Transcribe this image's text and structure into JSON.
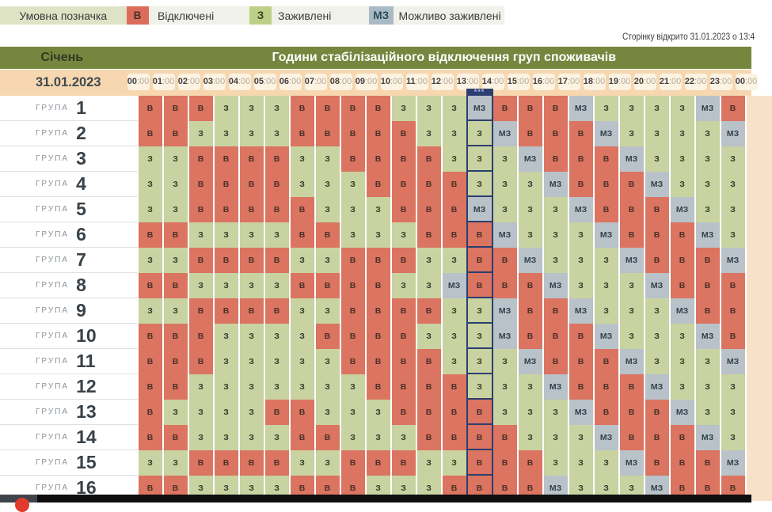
{
  "legend": {
    "title": "Умовна позначка",
    "items": [
      {
        "code": "В",
        "label": "Відключені",
        "type": "off",
        "color": "#dc6c5a"
      },
      {
        "code": "З",
        "label": "Заживлені",
        "type": "on",
        "color": "#bed087"
      },
      {
        "code": "МЗ",
        "label": "Можливо заживлені",
        "type": "maybe",
        "color": "#a9bac5"
      }
    ]
  },
  "page_opened_note": "Сторінку відкрито 31.01.2023 о 13:4",
  "table": {
    "month": "Січень",
    "title": "Години стабілізаційного відключення груп споживачів",
    "date": "31.01.2023",
    "hours": [
      "00:00",
      "01:00",
      "02:00",
      "03:00",
      "04:00",
      "05:00",
      "06:00",
      "07:00",
      "08:00",
      "09:00",
      "10:00",
      "11:00",
      "12:00",
      "13:00",
      "14:00",
      "15:00",
      "16:00",
      "17:00",
      "18:00",
      "19:00",
      "20:00",
      "21:00",
      "22:00",
      "23:00",
      "00:00"
    ],
    "current_hour": "13:00",
    "current_hour_index": 13,
    "marker_symbol": "***",
    "group_label": "ГРУПА",
    "groups": [
      {
        "number": "1",
        "cells": [
          "В",
          "В",
          "В",
          "З",
          "З",
          "З",
          "В",
          "В",
          "В",
          "В",
          "З",
          "З",
          "З",
          "МЗ",
          "В",
          "В",
          "В",
          "МЗ",
          "З",
          "З",
          "З",
          "З",
          "МЗ",
          "В"
        ]
      },
      {
        "number": "2",
        "cells": [
          "В",
          "В",
          "З",
          "З",
          "З",
          "З",
          "В",
          "В",
          "В",
          "В",
          "В",
          "З",
          "З",
          "З",
          "МЗ",
          "В",
          "В",
          "В",
          "МЗ",
          "З",
          "З",
          "З",
          "З",
          "МЗ"
        ]
      },
      {
        "number": "3",
        "cells": [
          "З",
          "З",
          "В",
          "В",
          "В",
          "В",
          "З",
          "З",
          "В",
          "В",
          "В",
          "В",
          "З",
          "З",
          "З",
          "МЗ",
          "В",
          "В",
          "В",
          "МЗ",
          "З",
          "З",
          "З",
          "З"
        ]
      },
      {
        "number": "4",
        "cells": [
          "З",
          "З",
          "В",
          "В",
          "В",
          "В",
          "З",
          "З",
          "З",
          "В",
          "В",
          "В",
          "В",
          "З",
          "З",
          "З",
          "МЗ",
          "В",
          "В",
          "В",
          "МЗ",
          "З",
          "З",
          "З"
        ]
      },
      {
        "number": "5",
        "cells": [
          "З",
          "З",
          "В",
          "В",
          "В",
          "В",
          "В",
          "З",
          "З",
          "З",
          "В",
          "В",
          "В",
          "МЗ",
          "З",
          "З",
          "З",
          "МЗ",
          "В",
          "В",
          "В",
          "МЗ",
          "З",
          "З"
        ]
      },
      {
        "number": "6",
        "cells": [
          "В",
          "В",
          "З",
          "З",
          "З",
          "З",
          "В",
          "В",
          "З",
          "З",
          "З",
          "В",
          "В",
          "В",
          "МЗ",
          "З",
          "З",
          "З",
          "МЗ",
          "В",
          "В",
          "В",
          "МЗ",
          "З"
        ]
      },
      {
        "number": "7",
        "cells": [
          "З",
          "З",
          "В",
          "В",
          "В",
          "В",
          "З",
          "З",
          "В",
          "В",
          "В",
          "З",
          "З",
          "В",
          "В",
          "МЗ",
          "З",
          "З",
          "З",
          "МЗ",
          "В",
          "В",
          "В",
          "МЗ"
        ]
      },
      {
        "number": "8",
        "cells": [
          "В",
          "В",
          "З",
          "З",
          "З",
          "З",
          "В",
          "В",
          "В",
          "В",
          "З",
          "З",
          "МЗ",
          "В",
          "В",
          "В",
          "МЗ",
          "З",
          "З",
          "З",
          "МЗ",
          "В",
          "В",
          "В"
        ]
      },
      {
        "number": "9",
        "cells": [
          "З",
          "З",
          "В",
          "В",
          "В",
          "В",
          "З",
          "З",
          "В",
          "В",
          "В",
          "В",
          "З",
          "З",
          "МЗ",
          "В",
          "В",
          "МЗ",
          "З",
          "З",
          "З",
          "МЗ",
          "В",
          "В"
        ]
      },
      {
        "number": "10",
        "cells": [
          "В",
          "В",
          "В",
          "З",
          "З",
          "З",
          "З",
          "В",
          "В",
          "В",
          "В",
          "З",
          "З",
          "З",
          "МЗ",
          "В",
          "В",
          "В",
          "МЗ",
          "З",
          "З",
          "З",
          "МЗ",
          "В"
        ]
      },
      {
        "number": "11",
        "cells": [
          "В",
          "В",
          "В",
          "З",
          "З",
          "З",
          "З",
          "З",
          "В",
          "В",
          "В",
          "В",
          "З",
          "З",
          "З",
          "МЗ",
          "В",
          "В",
          "В",
          "МЗ",
          "З",
          "З",
          "З",
          "МЗ"
        ]
      },
      {
        "number": "12",
        "cells": [
          "В",
          "В",
          "З",
          "З",
          "З",
          "З",
          "З",
          "З",
          "З",
          "В",
          "В",
          "В",
          "В",
          "З",
          "З",
          "З",
          "МЗ",
          "В",
          "В",
          "В",
          "МЗ",
          "З",
          "З",
          "З"
        ]
      },
      {
        "number": "13",
        "cells": [
          "В",
          "З",
          "З",
          "З",
          "З",
          "В",
          "В",
          "З",
          "З",
          "З",
          "В",
          "В",
          "В",
          "В",
          "З",
          "З",
          "З",
          "МЗ",
          "В",
          "В",
          "В",
          "МЗ",
          "З",
          "З"
        ]
      },
      {
        "number": "14",
        "cells": [
          "В",
          "В",
          "З",
          "З",
          "З",
          "З",
          "В",
          "В",
          "З",
          "З",
          "З",
          "В",
          "В",
          "В",
          "В",
          "З",
          "З",
          "З",
          "МЗ",
          "В",
          "В",
          "В",
          "МЗ",
          "З"
        ]
      },
      {
        "number": "15",
        "cells": [
          "З",
          "З",
          "В",
          "В",
          "В",
          "В",
          "З",
          "З",
          "В",
          "В",
          "В",
          "З",
          "З",
          "В",
          "В",
          "В",
          "З",
          "З",
          "З",
          "МЗ",
          "В",
          "В",
          "В",
          "МЗ"
        ]
      },
      {
        "number": "16",
        "cells": [
          "В",
          "В",
          "З",
          "З",
          "З",
          "З",
          "В",
          "В",
          "В",
          "З",
          "З",
          "З",
          "В",
          "В",
          "В",
          "В",
          "МЗ",
          "З",
          "З",
          "З",
          "МЗ",
          "В",
          "В",
          "В"
        ]
      }
    ]
  },
  "colors": {
    "off": "#d8705c",
    "on": "#c7d4a0",
    "maybe": "#b4c0c9",
    "header": "#76863e",
    "date_row": "#f6d7b0",
    "marker": "#2c3e6f"
  }
}
